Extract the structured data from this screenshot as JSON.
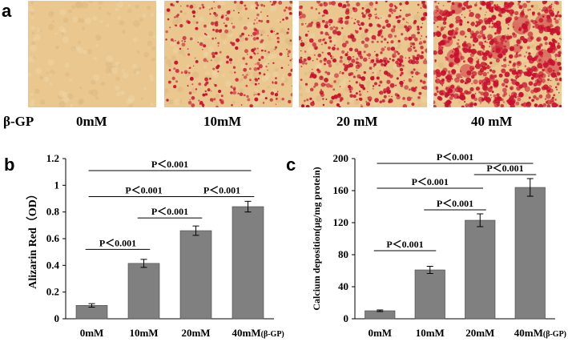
{
  "panel_a": {
    "letter": "a",
    "row_label": "β-GP",
    "conditions": [
      "0mM",
      "10mM",
      "20 mM",
      "40 mM"
    ],
    "stain_density": [
      0,
      0.35,
      0.55,
      0.85
    ],
    "background_color": "#e9c78f",
    "stain_color": "#c8102e"
  },
  "panel_b": {
    "letter": "b"
  },
  "panel_c": {
    "letter": "c"
  },
  "chart_data": [
    {
      "type": "bar",
      "categories": [
        "0mM",
        "10mM",
        "20mM",
        "40mM"
      ],
      "category_suffix": "(β-GP)",
      "values": [
        0.1,
        0.415,
        0.66,
        0.84
      ],
      "errors": [
        0.013,
        0.03,
        0.035,
        0.04
      ],
      "ylabel": "Alizarin Red（OD）",
      "xlabel": "",
      "ylim": [
        0,
        1.2
      ],
      "yticks": [
        0,
        0.2,
        0.4,
        0.6,
        0.8,
        1,
        1.2
      ],
      "ytick_labels": [
        "0",
        "0.2",
        "0.4",
        "0.6",
        "0.8",
        "1",
        "1.2"
      ],
      "bar_color": "#808080",
      "grid": false,
      "annotations": [
        {
          "text": "P＜0.001",
          "from": 1,
          "to": 2,
          "y": 0.52
        },
        {
          "text": "P＜0.001",
          "from": 2,
          "to": 3,
          "y": 0.755
        },
        {
          "text": "P＜0.001",
          "from": 3,
          "to": 4,
          "y": 0.915
        },
        {
          "text": "P＜0.001",
          "from": 1,
          "to": 3,
          "y": 0.915
        },
        {
          "text": "P＜0.001",
          "from": 1,
          "to": 4,
          "y": 1.11
        }
      ]
    },
    {
      "type": "bar",
      "categories": [
        "0mM",
        "10mM",
        "20mM",
        "40mM"
      ],
      "category_suffix": "(β-GP)",
      "values": [
        10,
        61,
        123,
        164
      ],
      "errors": [
        1,
        4.5,
        8,
        11
      ],
      "ylabel": "Calcium deposition(μg/mg protein)",
      "xlabel": "",
      "ylim": [
        0,
        200
      ],
      "yticks": [
        0,
        40,
        80,
        120,
        160,
        200
      ],
      "ytick_labels": [
        "0",
        "40",
        "80",
        "120",
        "160",
        "200"
      ],
      "bar_color": "#808080",
      "grid": false,
      "annotations": [
        {
          "text": "P＜0.001",
          "from": 1,
          "to": 2,
          "y": 85
        },
        {
          "text": "P＜0.001",
          "from": 2,
          "to": 3,
          "y": 136
        },
        {
          "text": "P＜0.001",
          "from": 3,
          "to": 4,
          "y": 180
        },
        {
          "text": "P＜0.001",
          "from": 1,
          "to": 3,
          "y": 163
        },
        {
          "text": "P＜0.001",
          "from": 1,
          "to": 4,
          "y": 194
        }
      ]
    }
  ]
}
